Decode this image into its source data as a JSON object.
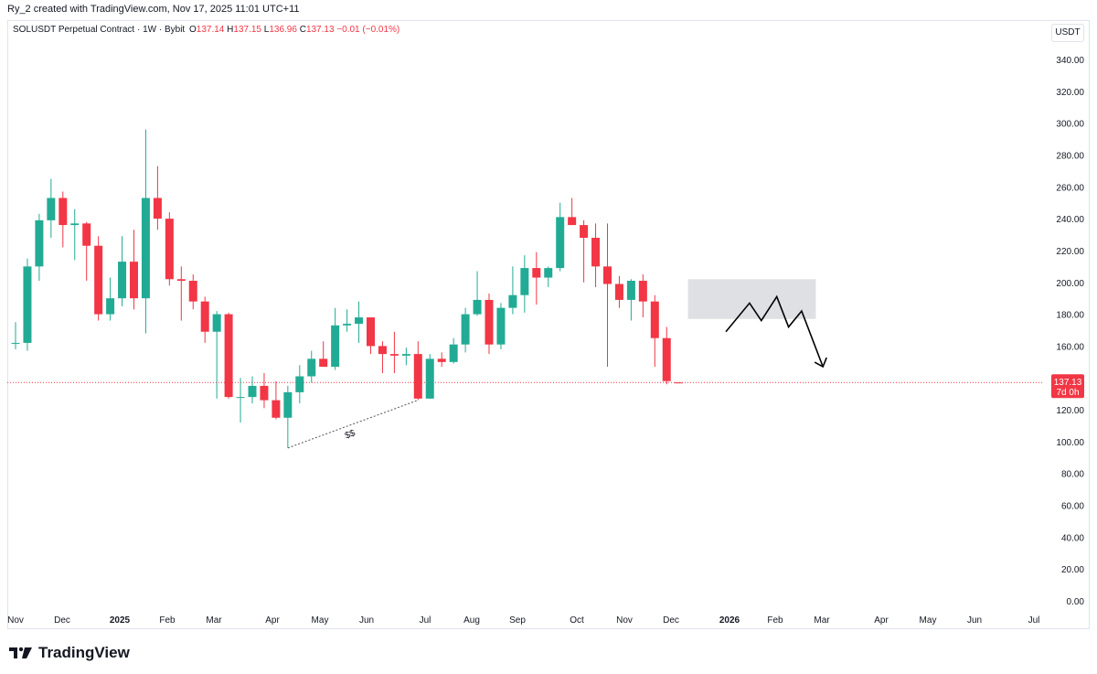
{
  "byline": "Ry_2 created with TradingView.com, Nov 17, 2025 11:01 UTC+11",
  "legend": {
    "symbol": "SOLUSDT Perpetual Contract · 1W · Bybit",
    "open_label": "O",
    "open": "137.14",
    "high_label": "H",
    "high": "137.15",
    "low_label": "L",
    "low": "136.96",
    "close_label": "C",
    "close": "137.13",
    "change": "−0.01 (−0.01%)"
  },
  "currency": "USDT",
  "brand": "TradingView",
  "colors": {
    "up": "#22ab94",
    "down": "#f23645",
    "grid": "#f0f3fa",
    "text": "#131722"
  },
  "chart_data": {
    "type": "candlestick",
    "ylim": [
      0,
      340
    ],
    "y_ticks": [
      "0.00",
      "20.00",
      "40.00",
      "60.00",
      "80.00",
      "100.00",
      "120.00",
      "140.00",
      "160.00",
      "180.00",
      "200.00",
      "220.00",
      "240.00",
      "260.00",
      "280.00",
      "300.00",
      "320.00",
      "340.00"
    ],
    "x_ticks": [
      {
        "label": "Nov",
        "bold": false
      },
      {
        "label": "Dec",
        "bold": false
      },
      {
        "label": "2025",
        "bold": true
      },
      {
        "label": "Feb",
        "bold": false
      },
      {
        "label": "Mar",
        "bold": false
      },
      {
        "label": "Apr",
        "bold": false
      },
      {
        "label": "May",
        "bold": false
      },
      {
        "label": "Jun",
        "bold": false
      },
      {
        "label": "Jul",
        "bold": false
      },
      {
        "label": "Aug",
        "bold": false
      },
      {
        "label": "Sep",
        "bold": false
      },
      {
        "label": "Oct",
        "bold": false
      },
      {
        "label": "Nov",
        "bold": false
      },
      {
        "label": "Dec",
        "bold": false
      },
      {
        "label": "2026",
        "bold": true
      },
      {
        "label": "Feb",
        "bold": false
      },
      {
        "label": "Mar",
        "bold": false
      },
      {
        "label": "Apr",
        "bold": false
      },
      {
        "label": "May",
        "bold": false
      },
      {
        "label": "Jun",
        "bold": false
      },
      {
        "label": "Jul",
        "bold": false
      }
    ],
    "candles": [
      {
        "o": 162,
        "h": 175,
        "l": 158,
        "c": 162
      },
      {
        "o": 162,
        "h": 215,
        "l": 157,
        "c": 210
      },
      {
        "o": 210,
        "h": 243,
        "l": 201,
        "c": 239
      },
      {
        "o": 239,
        "h": 265,
        "l": 228,
        "c": 253
      },
      {
        "o": 253,
        "h": 257,
        "l": 222,
        "c": 236
      },
      {
        "o": 236,
        "h": 246,
        "l": 214,
        "c": 237
      },
      {
        "o": 237,
        "h": 238,
        "l": 201,
        "c": 223
      },
      {
        "o": 223,
        "h": 229,
        "l": 176,
        "c": 180
      },
      {
        "o": 180,
        "h": 203,
        "l": 176,
        "c": 190
      },
      {
        "o": 190,
        "h": 229,
        "l": 185,
        "c": 213
      },
      {
        "o": 213,
        "h": 233,
        "l": 183,
        "c": 190
      },
      {
        "o": 190,
        "h": 296,
        "l": 168,
        "c": 253
      },
      {
        "o": 253,
        "h": 273,
        "l": 233,
        "c": 240
      },
      {
        "o": 240,
        "h": 244,
        "l": 198,
        "c": 202
      },
      {
        "o": 202,
        "h": 210,
        "l": 176,
        "c": 201
      },
      {
        "o": 201,
        "h": 205,
        "l": 183,
        "c": 188
      },
      {
        "o": 188,
        "h": 191,
        "l": 162,
        "c": 169
      },
      {
        "o": 169,
        "h": 182,
        "l": 127,
        "c": 180
      },
      {
        "o": 180,
        "h": 181,
        "l": 127,
        "c": 128
      },
      {
        "o": 128,
        "h": 140,
        "l": 112,
        "c": 128
      },
      {
        "o": 128,
        "h": 141,
        "l": 124,
        "c": 135
      },
      {
        "o": 135,
        "h": 143,
        "l": 121,
        "c": 126
      },
      {
        "o": 126,
        "h": 138,
        "l": 114,
        "c": 115
      },
      {
        "o": 115,
        "h": 135,
        "l": 96,
        "c": 131
      },
      {
        "o": 131,
        "h": 148,
        "l": 124,
        "c": 141
      },
      {
        "o": 141,
        "h": 157,
        "l": 137,
        "c": 152
      },
      {
        "o": 152,
        "h": 163,
        "l": 147,
        "c": 147
      },
      {
        "o": 147,
        "h": 184,
        "l": 145,
        "c": 173
      },
      {
        "o": 173,
        "h": 183,
        "l": 169,
        "c": 174
      },
      {
        "o": 174,
        "h": 188,
        "l": 162,
        "c": 178
      },
      {
        "o": 178,
        "h": 178,
        "l": 155,
        "c": 160
      },
      {
        "o": 160,
        "h": 163,
        "l": 143,
        "c": 155
      },
      {
        "o": 155,
        "h": 169,
        "l": 143,
        "c": 154
      },
      {
        "o": 154,
        "h": 159,
        "l": 148,
        "c": 155
      },
      {
        "o": 155,
        "h": 163,
        "l": 126,
        "c": 127
      },
      {
        "o": 127,
        "h": 155,
        "l": 127,
        "c": 152
      },
      {
        "o": 152,
        "h": 156,
        "l": 147,
        "c": 150
      },
      {
        "o": 150,
        "h": 165,
        "l": 149,
        "c": 161
      },
      {
        "o": 161,
        "h": 184,
        "l": 156,
        "c": 180
      },
      {
        "o": 180,
        "h": 207,
        "l": 179,
        "c": 189
      },
      {
        "o": 189,
        "h": 193,
        "l": 155,
        "c": 161
      },
      {
        "o": 161,
        "h": 187,
        "l": 158,
        "c": 184
      },
      {
        "o": 184,
        "h": 210,
        "l": 180,
        "c": 192
      },
      {
        "o": 192,
        "h": 217,
        "l": 181,
        "c": 209
      },
      {
        "o": 209,
        "h": 219,
        "l": 186,
        "c": 203
      },
      {
        "o": 203,
        "h": 210,
        "l": 197,
        "c": 209
      },
      {
        "o": 209,
        "h": 250,
        "l": 207,
        "c": 241
      },
      {
        "o": 241,
        "h": 253,
        "l": 236,
        "c": 236
      },
      {
        "o": 236,
        "h": 239,
        "l": 200,
        "c": 228
      },
      {
        "o": 228,
        "h": 237,
        "l": 197,
        "c": 210
      },
      {
        "o": 210,
        "h": 237,
        "l": 147,
        "c": 199
      },
      {
        "o": 199,
        "h": 204,
        "l": 184,
        "c": 189
      },
      {
        "o": 189,
        "h": 202,
        "l": 176,
        "c": 201
      },
      {
        "o": 201,
        "h": 205,
        "l": 178,
        "c": 188
      },
      {
        "o": 188,
        "h": 192,
        "l": 147,
        "c": 165
      },
      {
        "o": 165,
        "h": 172,
        "l": 136,
        "c": 138
      },
      {
        "o": 137.14,
        "h": 137.15,
        "l": 136.96,
        "c": 137.13
      }
    ],
    "current_price": "137.13",
    "countdown": "7d 0h",
    "annotation_text": "$$",
    "zone": {
      "from_index": 56.8,
      "to_index": 67.6,
      "low": 177,
      "high": 202
    },
    "dashed_line": [
      {
        "i": 23,
        "v": 96
      },
      {
        "i": 34,
        "v": 126
      }
    ],
    "projection_path": [
      {
        "i": 60.0,
        "v": 169
      },
      {
        "i": 62.0,
        "v": 187
      },
      {
        "i": 63.0,
        "v": 176
      },
      {
        "i": 64.3,
        "v": 191
      },
      {
        "i": 65.3,
        "v": 172
      },
      {
        "i": 66.4,
        "v": 182
      },
      {
        "i": 68.2,
        "v": 147
      }
    ]
  }
}
